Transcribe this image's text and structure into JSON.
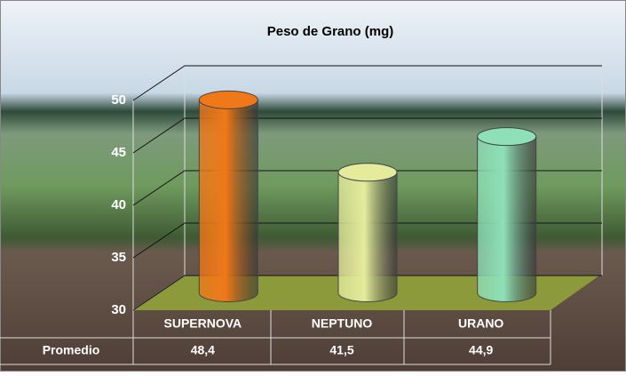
{
  "chart_data": {
    "type": "cylinder-bar",
    "title": "Peso de Grano (mg)",
    "categories": [
      "SUPERNOVA",
      "NEPTUNO",
      "URANO"
    ],
    "row_label": "Promedio",
    "values": [
      48.4,
      41.5,
      44.9
    ],
    "value_labels": [
      "48,4",
      "41,5",
      "44,9"
    ],
    "colors": [
      "#f07818",
      "#e4ec9c",
      "#8ee0b8"
    ],
    "ylim": [
      30,
      50
    ],
    "yticks": [
      30,
      35,
      40,
      45,
      50
    ],
    "grid": true
  }
}
